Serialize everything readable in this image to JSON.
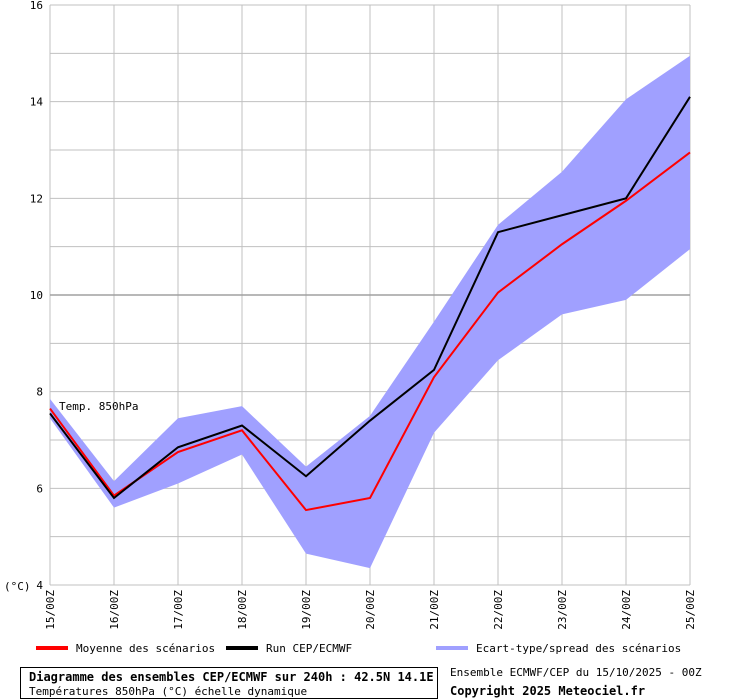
{
  "chart_data": {
    "type": "line",
    "unit_label": "(°C)",
    "annotation": "Temp. 850hPa",
    "categories": [
      "15/00Z",
      "16/00Z",
      "17/00Z",
      "18/00Z",
      "19/00Z",
      "20/00Z",
      "21/00Z",
      "22/00Z",
      "23/00Z",
      "24/00Z",
      "25/00Z"
    ],
    "ylim": [
      4,
      16
    ],
    "yticks": [
      4,
      6,
      8,
      10,
      12,
      14,
      16
    ],
    "grid": true,
    "series": [
      {
        "name": "Moyenne des scénarios",
        "kind": "line",
        "color": "#ff0000",
        "values": [
          7.65,
          5.85,
          6.75,
          7.2,
          5.55,
          5.8,
          8.3,
          10.05,
          11.05,
          11.95,
          12.95
        ]
      },
      {
        "name": "Run CEP/ECMWF",
        "kind": "line",
        "color": "#000000",
        "values": [
          7.55,
          5.8,
          6.85,
          7.3,
          6.25,
          7.4,
          8.45,
          11.3,
          11.65,
          12.0,
          14.1
        ]
      },
      {
        "name": "Ecart-type/spread des scénarios",
        "kind": "band",
        "color": "#a0a0ff",
        "upper": [
          7.85,
          6.15,
          7.45,
          7.7,
          6.45,
          7.5,
          9.45,
          11.45,
          12.55,
          14.05,
          14.95
        ],
        "lower": [
          7.45,
          5.6,
          6.1,
          6.7,
          4.65,
          4.35,
          7.15,
          8.65,
          9.6,
          9.9,
          10.95
        ]
      }
    ]
  },
  "legend": [
    {
      "label": "Moyenne des scénarios",
      "color": "#ff0000"
    },
    {
      "label": "Run CEP/ECMWF",
      "color": "#000000"
    },
    {
      "label": "Ecart-type/spread des scénarios",
      "color": "#a0a0ff"
    }
  ],
  "footer": {
    "title": "Diagramme des ensembles CEP/ECMWF sur 240h : 42.5N 14.1E",
    "subtitle": "Températures 850hPa (°C) échelle dynamique",
    "run_info": "Ensemble ECMWF/CEP du 15/10/2025 - 00Z",
    "copyright": "Copyright 2025 Meteociel.fr"
  }
}
